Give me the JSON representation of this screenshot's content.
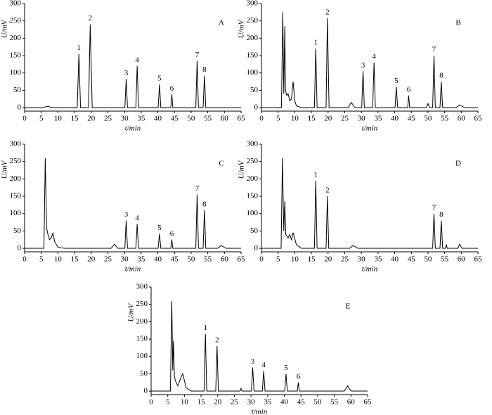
{
  "chart_data": [
    {
      "type": "line",
      "title": "A",
      "xlabel": "t/min",
      "ylabel": "U/mV",
      "color": "#000000",
      "xlim": [
        0,
        65
      ],
      "ylim": [
        -10,
        300
      ],
      "xticks": [
        0,
        5,
        10,
        15,
        20,
        25,
        30,
        35,
        40,
        45,
        50,
        55,
        60,
        65
      ],
      "yticks": [
        0,
        50,
        100,
        150,
        200,
        250,
        300
      ],
      "x": [
        0,
        5.5,
        6.5,
        7.2,
        8,
        15.8,
        16.3,
        16.8,
        19.2,
        19.7,
        20.3,
        30.1,
        30.5,
        30.9,
        33.4,
        33.8,
        34.2,
        40.1,
        40.5,
        40.9,
        43.9,
        44.2,
        44.5,
        51.4,
        51.8,
        52.2,
        53.6,
        54,
        54.4,
        65
      ],
      "values": [
        0,
        0,
        3,
        4,
        0,
        0,
        155,
        0,
        0,
        240,
        0,
        0,
        82,
        0,
        0,
        120,
        0,
        0,
        67,
        0,
        0,
        38,
        0,
        0,
        135,
        0,
        0,
        92,
        0,
        0
      ],
      "annotations": [
        {
          "text": "1",
          "x": 16.3,
          "y": 155
        },
        {
          "text": "2",
          "x": 19.7,
          "y": 240
        },
        {
          "text": "3",
          "x": 30.5,
          "y": 82
        },
        {
          "text": "4",
          "x": 33.8,
          "y": 120
        },
        {
          "text": "5",
          "x": 40.5,
          "y": 67
        },
        {
          "text": "6",
          "x": 44.2,
          "y": 38
        },
        {
          "text": "7",
          "x": 51.8,
          "y": 135
        },
        {
          "text": "8",
          "x": 54,
          "y": 92
        }
      ]
    },
    {
      "type": "line",
      "title": "B",
      "xlabel": "t/min",
      "ylabel": "U/mV",
      "color": "#000000",
      "xlim": [
        0,
        65
      ],
      "ylim": [
        -10,
        300
      ],
      "xticks": [
        0,
        5,
        10,
        15,
        20,
        25,
        30,
        35,
        40,
        45,
        50,
        55,
        60,
        65
      ],
      "yticks": [
        0,
        50,
        100,
        150,
        200,
        250,
        300
      ],
      "x": [
        0,
        6,
        6.4,
        6.7,
        7,
        7.2,
        7.6,
        8,
        8.5,
        9,
        9.5,
        10,
        10.5,
        12,
        15.9,
        16.3,
        16.7,
        19.4,
        19.8,
        20.3,
        26,
        27,
        28,
        30.1,
        30.5,
        30.9,
        33.4,
        33.8,
        34.2,
        40.1,
        40.5,
        40.9,
        43.9,
        44.2,
        44.5,
        49.5,
        50,
        50.5,
        51.4,
        51.8,
        52.2,
        53.6,
        54,
        54.4,
        58.5,
        59.5,
        61,
        65
      ],
      "values": [
        0,
        0,
        275,
        40,
        235,
        50,
        35,
        40,
        20,
        25,
        75,
        20,
        5,
        0,
        0,
        170,
        0,
        0,
        258,
        0,
        0,
        15,
        0,
        0,
        105,
        0,
        0,
        130,
        0,
        0,
        60,
        0,
        0,
        35,
        0,
        0,
        12,
        0,
        0,
        150,
        0,
        0,
        75,
        0,
        0,
        8,
        0,
        0
      ],
      "annotations": [
        {
          "text": "1",
          "x": 16.3,
          "y": 170
        },
        {
          "text": "2",
          "x": 19.8,
          "y": 258
        },
        {
          "text": "3",
          "x": 30.5,
          "y": 105
        },
        {
          "text": "4",
          "x": 33.8,
          "y": 130
        },
        {
          "text": "5",
          "x": 40.5,
          "y": 60
        },
        {
          "text": "6",
          "x": 44.2,
          "y": 35
        },
        {
          "text": "7",
          "x": 51.8,
          "y": 150
        },
        {
          "text": "8",
          "x": 54,
          "y": 75
        }
      ]
    },
    {
      "type": "line",
      "title": "C",
      "xlabel": "t/min",
      "ylabel": "U/mV",
      "color": "#000000",
      "xlim": [
        0,
        65
      ],
      "ylim": [
        -10,
        300
      ],
      "xticks": [
        0,
        5,
        10,
        15,
        20,
        25,
        30,
        35,
        40,
        45,
        50,
        55,
        60,
        65
      ],
      "yticks": [
        0,
        50,
        100,
        150,
        200,
        250,
        300
      ],
      "x": [
        0,
        5.8,
        6.2,
        6.6,
        7,
        7.5,
        8,
        8.5,
        9,
        10,
        12,
        26,
        27,
        28,
        30.1,
        30.5,
        30.9,
        33.4,
        33.8,
        34.2,
        40.1,
        40.5,
        40.9,
        43.9,
        44.2,
        44.5,
        51.4,
        51.8,
        52.2,
        53.6,
        54,
        54.4,
        58,
        59,
        60.5,
        65
      ],
      "values": [
        0,
        0,
        260,
        60,
        40,
        25,
        30,
        45,
        20,
        3,
        0,
        0,
        12,
        0,
        0,
        80,
        0,
        0,
        70,
        0,
        0,
        42,
        0,
        0,
        25,
        0,
        0,
        155,
        0,
        0,
        110,
        0,
        0,
        8,
        0,
        0
      ],
      "annotations": [
        {
          "text": "3",
          "x": 30.5,
          "y": 80
        },
        {
          "text": "4",
          "x": 33.8,
          "y": 70
        },
        {
          "text": "5",
          "x": 40.5,
          "y": 42
        },
        {
          "text": "6",
          "x": 44.2,
          "y": 25
        },
        {
          "text": "7",
          "x": 51.8,
          "y": 155
        },
        {
          "text": "8",
          "x": 54,
          "y": 110
        }
      ]
    },
    {
      "type": "line",
      "title": "D",
      "xlabel": "t/min",
      "ylabel": "U/mV",
      "color": "#000000",
      "xlim": [
        0,
        65
      ],
      "ylim": [
        -10,
        300
      ],
      "xticks": [
        0,
        5,
        10,
        15,
        20,
        25,
        30,
        35,
        40,
        45,
        50,
        55,
        60,
        65
      ],
      "yticks": [
        0,
        50,
        100,
        150,
        200,
        250,
        300
      ],
      "x": [
        0,
        5.9,
        6.3,
        6.7,
        7,
        7.3,
        8,
        8.5,
        9,
        9.5,
        10.5,
        12,
        15.9,
        16.3,
        16.7,
        19.4,
        19.8,
        20.2,
        26.5,
        27.5,
        29,
        51.4,
        51.8,
        52.2,
        53.6,
        54,
        54.4,
        55.2,
        55.5,
        55.8,
        59,
        59.5,
        60.2,
        65
      ],
      "values": [
        0,
        0,
        260,
        50,
        135,
        40,
        30,
        40,
        25,
        45,
        10,
        0,
        0,
        195,
        0,
        0,
        150,
        0,
        0,
        8,
        0,
        0,
        100,
        0,
        0,
        80,
        0,
        0,
        10,
        0,
        0,
        12,
        0,
        0
      ],
      "annotations": [
        {
          "text": "1",
          "x": 16.3,
          "y": 195
        },
        {
          "text": "2",
          "x": 19.8,
          "y": 150
        },
        {
          "text": "7",
          "x": 51.8,
          "y": 100
        },
        {
          "text": "8",
          "x": 54,
          "y": 80
        }
      ]
    },
    {
      "type": "line",
      "title": "E",
      "xlabel": "t/min",
      "ylabel": "U/mV",
      "color": "#000000",
      "xlim": [
        0,
        65
      ],
      "ylim": [
        -10,
        300
      ],
      "xticks": [
        0,
        5,
        10,
        15,
        20,
        25,
        30,
        35,
        40,
        45,
        50,
        55,
        60,
        65
      ],
      "yticks": [
        0,
        50,
        100,
        150,
        200,
        250,
        300
      ],
      "x": [
        0,
        5.8,
        6.2,
        6.5,
        6.7,
        7,
        7.5,
        8,
        9,
        9.5,
        10.5,
        12,
        15.9,
        16.3,
        16.7,
        19.4,
        19.8,
        20.2,
        26.7,
        27,
        27.3,
        30.1,
        30.5,
        30.9,
        33.4,
        33.8,
        34.2,
        40.1,
        40.5,
        40.9,
        43.9,
        44.2,
        44.5,
        58,
        59,
        60,
        65
      ],
      "values": [
        0,
        0,
        260,
        60,
        145,
        40,
        25,
        15,
        40,
        50,
        10,
        0,
        0,
        165,
        0,
        0,
        130,
        0,
        0,
        8,
        0,
        0,
        68,
        0,
        0,
        58,
        0,
        0,
        50,
        0,
        0,
        25,
        0,
        0,
        15,
        0,
        0
      ],
      "annotations": [
        {
          "text": "1",
          "x": 16.3,
          "y": 165
        },
        {
          "text": "2",
          "x": 19.8,
          "y": 130
        },
        {
          "text": "3",
          "x": 30.5,
          "y": 68
        },
        {
          "text": "4",
          "x": 33.8,
          "y": 58
        },
        {
          "text": "5",
          "x": 40.5,
          "y": 50
        },
        {
          "text": "6",
          "x": 44.2,
          "y": 25
        }
      ]
    }
  ]
}
